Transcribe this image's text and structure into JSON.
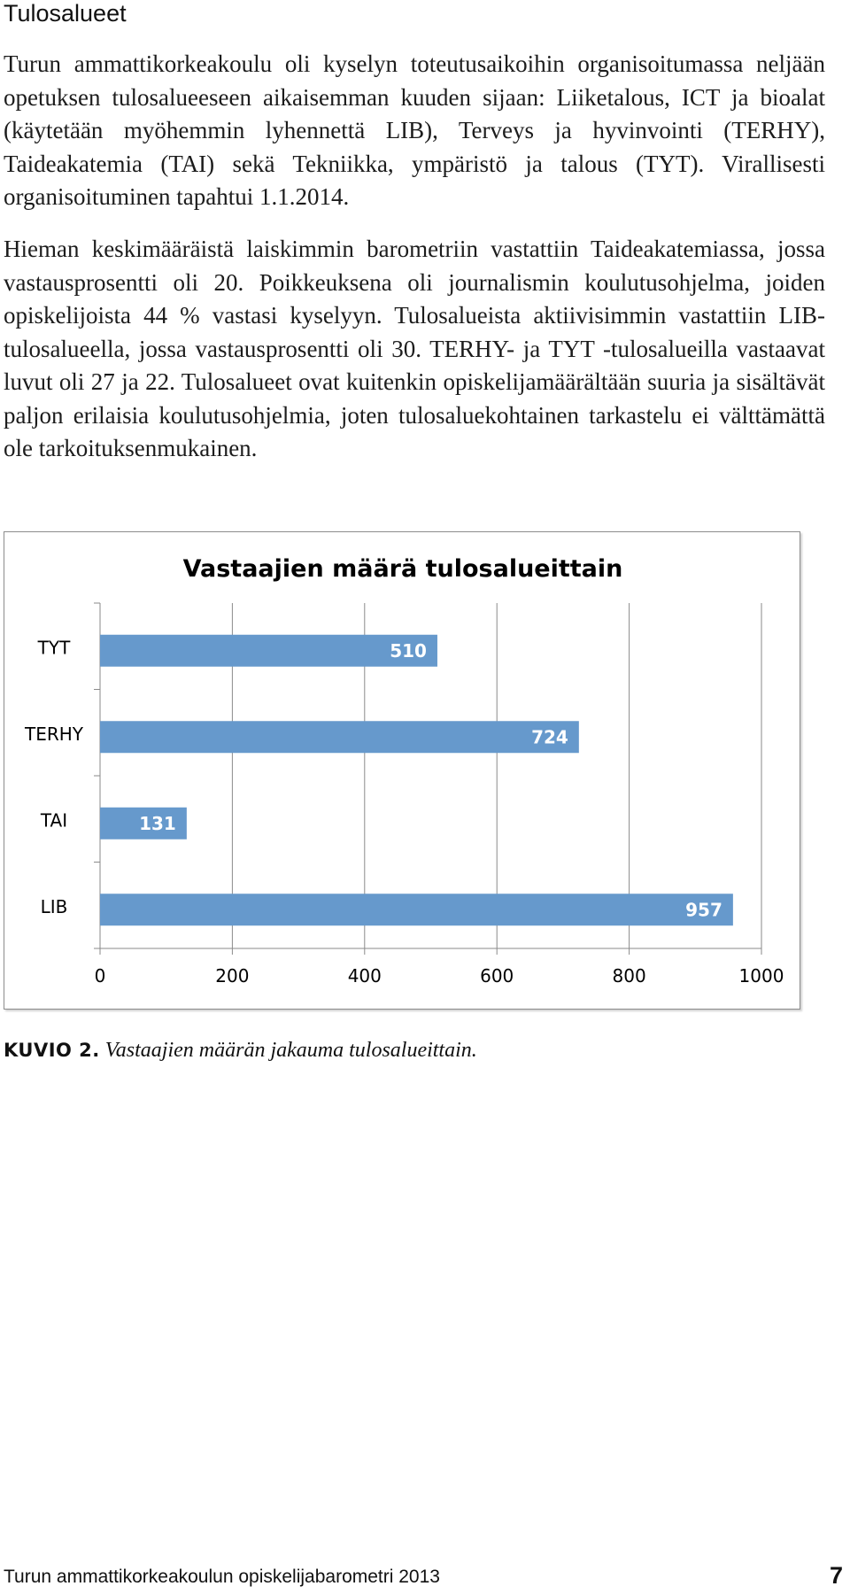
{
  "heading": "Tulosalueet",
  "paragraphs": [
    "Turun ammattikorkeakoulu oli kyselyn toteutusaikoihin organisoitumassa nel­jään opetuksen tulosalueeseen aikaisemman kuuden sijaan: Liiketalous, ICT ja bioalat (käytetään myöhemmin lyhennettä LIB), Terveys ja hyvinvointi (TER­HY), Taideakatemia (TAI) sekä Tekniikka, ympäristö ja talous (TYT). Virallises­ti organisoituminen tapahtui 1.1.2014.",
    "Hieman keskimääräistä laiskimmin barometriin vastattiin Taideakatemiassa, jos­sa vastausprosentti oli 20. Poikkeuksena oli journalismin koulutusohjelma, joi­den opiskelijoista 44 % vastasi kyselyyn. Tulosalueista aktiivisimmin vastattiin LIB-tulosalueella, jossa vastausprosentti oli 30. TERHY- ja TYT -tulosalueilla vastaavat luvut oli 27 ja 22. Tulosalueet ovat kuitenkin opiskelijamäärältään suu­ria ja sisältävät paljon erilaisia koulutusohjelmia, joten tulosaluekohtainen tar­kastelu ei välttämättä ole tarkoituksenmukainen."
  ],
  "chart_data": {
    "type": "bar",
    "orientation": "horizontal",
    "title": "Vastaajien määrä tulosalueittain",
    "categories": [
      "TYT",
      "TERHY",
      "TAI",
      "LIB"
    ],
    "values": [
      510,
      724,
      131,
      957
    ],
    "xlim": [
      0,
      1000
    ],
    "xticks": [
      "0",
      "200",
      "400",
      "600",
      "800",
      "1000"
    ],
    "bar_color": "#6699CC",
    "grid": true,
    "legend": "none"
  },
  "caption": {
    "label": "KUVIO 2.",
    "text": "Vastaajien määrän jakauma tulosalueittain."
  },
  "footer": {
    "publication": "Turun ammattikorkeakoulun opiskelijabarometri 2013",
    "page_number": "7"
  }
}
